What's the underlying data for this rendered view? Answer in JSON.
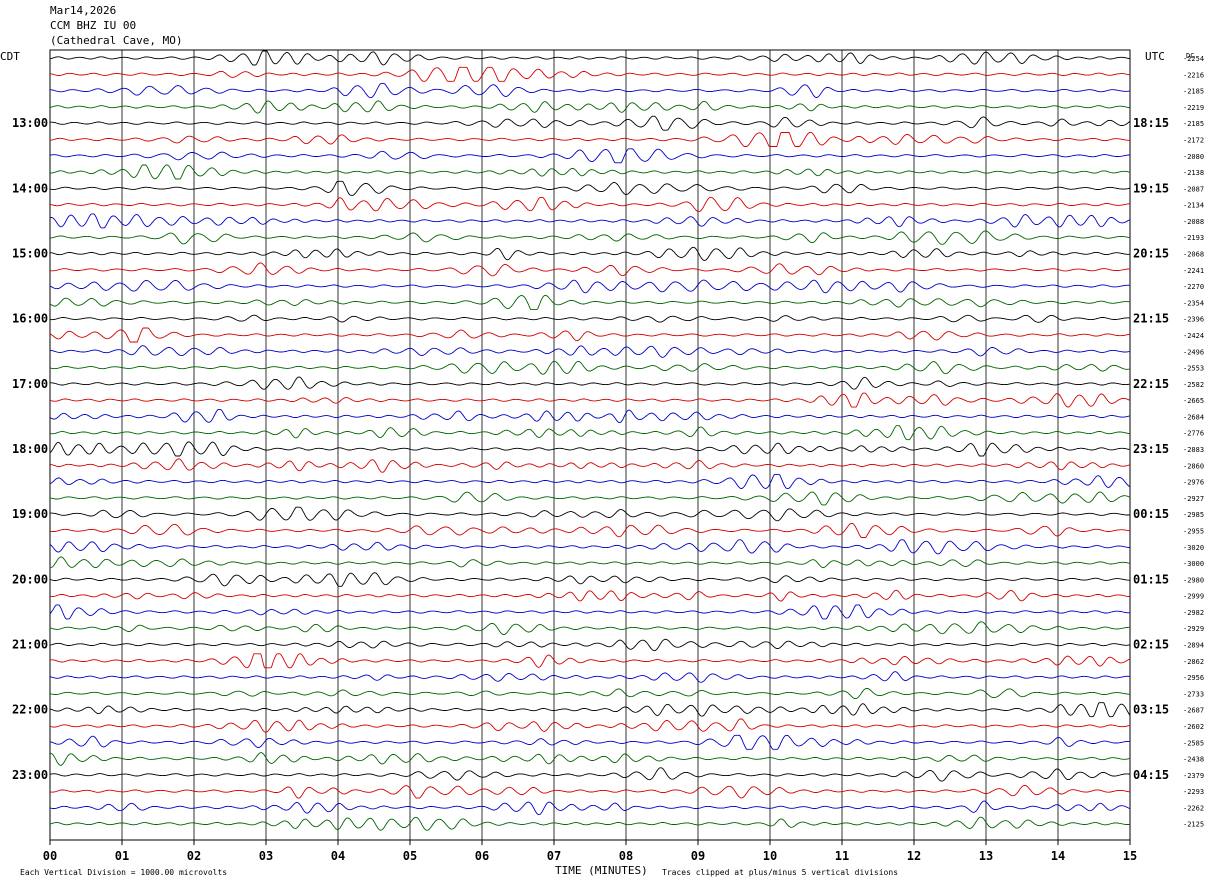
{
  "header": {
    "date": "Mar14,2026",
    "station": "CCM BHZ IU 00",
    "location": "(Cathedral Cave, MO)"
  },
  "left_tz": "CDT",
  "right_tz": "UTC",
  "dc_label": "DC",
  "x_axis_title": "TIME (MINUTES)",
  "footer_left": "Each Vertical Division = 1000.00 microvolts",
  "footer_right": "Traces clipped at plus/minus 5 vertical divisions",
  "colors": [
    "#000000",
    "#d40000",
    "#0000c8",
    "#006400"
  ],
  "chart_data": {
    "type": "line",
    "title": "CCM BHZ IU 00 (Cathedral Cave, MO)",
    "x_ticks": [
      "00",
      "01",
      "02",
      "03",
      "04",
      "05",
      "06",
      "07",
      "08",
      "09",
      "10",
      "11",
      "12",
      "13",
      "14",
      "15"
    ],
    "xlim": [
      0,
      15
    ],
    "trace_count": 48,
    "minutes_per_trace": 15,
    "left_hour_labels": [
      "13:00",
      "14:00",
      "15:00",
      "16:00",
      "17:00",
      "18:00",
      "19:00",
      "20:00",
      "21:00",
      "22:00",
      "23:00"
    ],
    "right_hour_labels": [
      "18:15",
      "19:15",
      "20:15",
      "21:15",
      "22:15",
      "23:15",
      "00:15",
      "01:15",
      "02:15",
      "03:15",
      "04:15"
    ],
    "dc_offsets": [
      2254,
      2216,
      2185,
      2219,
      2185,
      2172,
      2080,
      2138,
      2087,
      2134,
      2088,
      2193,
      2068,
      2241,
      2270,
      2354,
      2396,
      2424,
      2496,
      2553,
      2582,
      2665,
      2684,
      2776,
      2883,
      2860,
      2976,
      2927,
      2985,
      2955,
      3020,
      3000,
      2980,
      2999,
      2982,
      2929,
      2894,
      2862,
      2956,
      2733,
      2687,
      2602,
      2585,
      2438,
      2379,
      2293,
      2262,
      2125
    ],
    "grid": true
  }
}
